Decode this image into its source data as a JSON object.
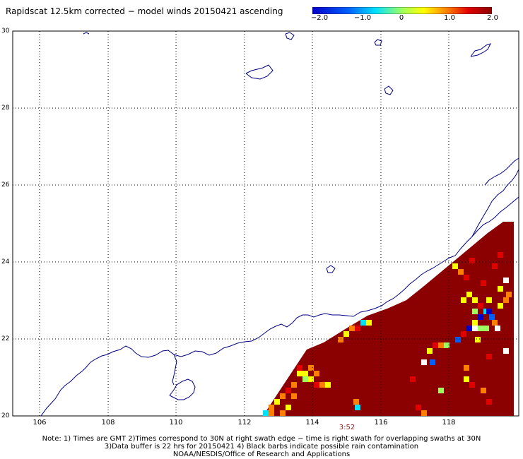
{
  "title": "Rapidscat 12.5km corrected − model winds 20150421 ascending",
  "colorbar": {
    "labels": [
      "−2.0",
      "−1.0",
      "0",
      "1.0",
      "2.0"
    ],
    "values": [
      -2.0,
      -1.0,
      0,
      1.0,
      2.0
    ],
    "colors": [
      "#0000c8",
      "#0060ff",
      "#00e0ff",
      "#a0ff60",
      "#ffff00",
      "#ff8000",
      "#e00000",
      "#8b0000"
    ]
  },
  "map": {
    "lon_range": [
      105.5,
      120
    ],
    "lat_range": [
      20,
      30
    ],
    "lon_ticks": [
      "106",
      "108",
      "110",
      "112",
      "114",
      "116",
      "118"
    ],
    "lat_ticks": [
      "30",
      "28",
      "26",
      "24",
      "22",
      "20"
    ],
    "land_color": "#ffffff",
    "coast_color": "#000080",
    "swath_color": "#8b0000"
  },
  "time_label": "3:52",
  "notes": [
    "Note: 1) Times are GMT 2)Times correspond to 30N at right swath edge − time is right swath for overlapping swaths at 30N",
    "3)Data buffer is 22 hrs for 20150421 4) Black barbs indicate possible rain contamination",
    "NOAA/NESDIS/Office of Research and Applications"
  ]
}
